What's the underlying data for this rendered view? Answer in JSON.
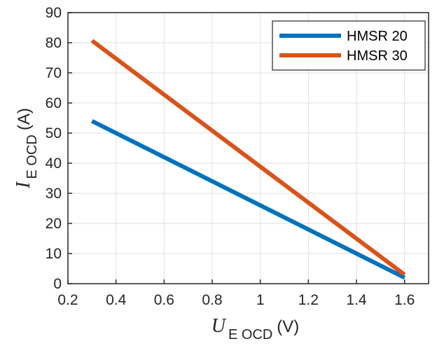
{
  "chart_data": {
    "type": "line",
    "x_axis": {
      "label": {
        "symbol": "U",
        "subscript": "E OCD",
        "unit": "(V)"
      },
      "range": [
        0.2,
        1.7
      ],
      "ticks": [
        0.2,
        0.4,
        0.6,
        0.8,
        1,
        1.2,
        1.4,
        1.6
      ],
      "tick_labels": [
        "0.2",
        "0.4",
        "0.6",
        "0.8",
        "1",
        "1.2",
        "1.4",
        "1.6"
      ]
    },
    "y_axis": {
      "label": {
        "symbol": "I",
        "subscript": "E OCD",
        "unit": "(A)"
      },
      "range": [
        0,
        90
      ],
      "ticks": [
        0,
        10,
        20,
        30,
        40,
        50,
        60,
        70,
        80,
        90
      ],
      "tick_labels": [
        "0",
        "10",
        "20",
        "30",
        "40",
        "50",
        "60",
        "70",
        "80",
        "90"
      ]
    },
    "grid": true,
    "legend_position": "top-right",
    "series": [
      {
        "name": "HMSR 20",
        "color": "#0072BD",
        "x": [
          0.3,
          1.6
        ],
        "y": [
          54,
          2
        ]
      },
      {
        "name": "HMSR 30",
        "color": "#D95319",
        "x": [
          0.3,
          1.6
        ],
        "y": [
          80.7,
          3
        ]
      }
    ]
  }
}
